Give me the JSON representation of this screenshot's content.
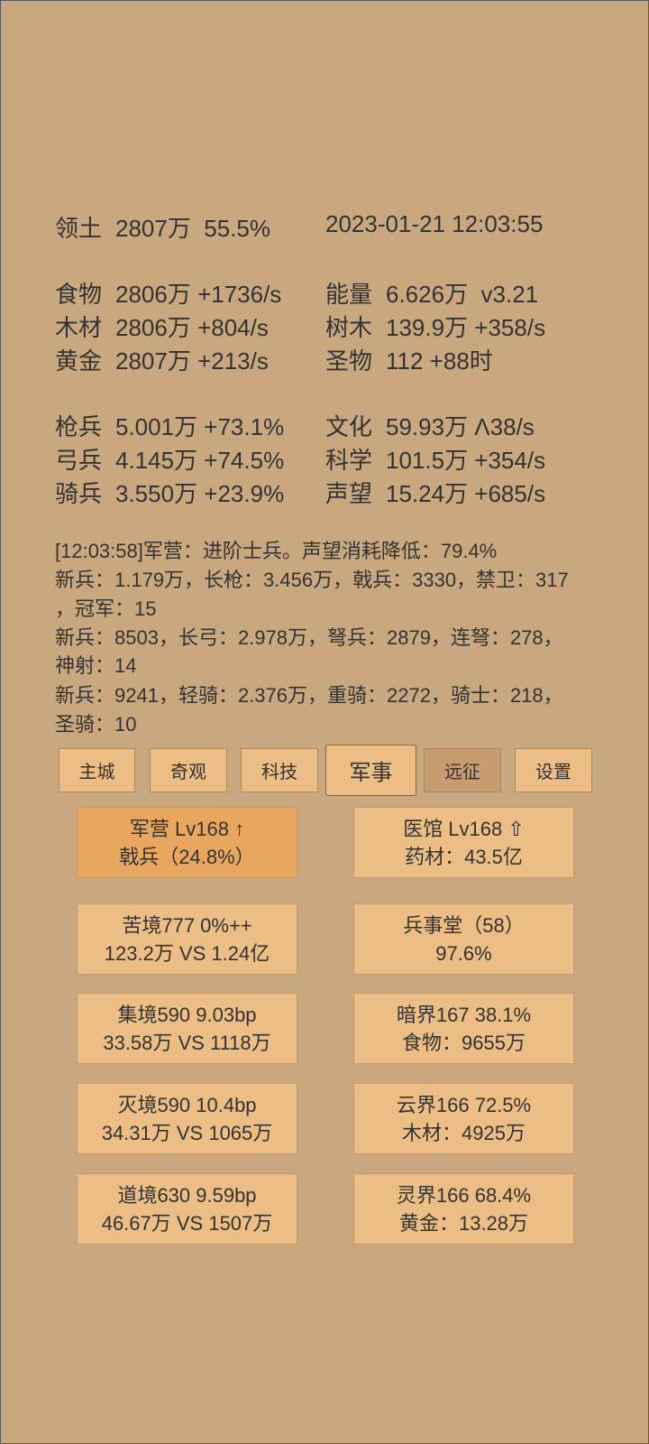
{
  "stats": [
    {
      "left": {
        "label": "领土",
        "value": "2807万  55.5%"
      },
      "right": {
        "label": "",
        "value": "2023-01-21 12:03:55"
      }
    },
    {
      "left": {
        "label": "食物",
        "value": "2806万 +1736/s"
      },
      "right": {
        "label": "能量",
        "value": "6.626万  v3.21"
      }
    },
    {
      "left": {
        "label": "木材",
        "value": "2806万 +804/s"
      },
      "right": {
        "label": "树木",
        "value": "139.9万 +358/s"
      }
    },
    {
      "left": {
        "label": "黄金",
        "value": "2807万 +213/s"
      },
      "right": {
        "label": "圣物",
        "value": "112 +88时"
      }
    },
    {
      "left": {
        "label": "枪兵",
        "value": "5.001万 +73.1%"
      },
      "right": {
        "label": "文化",
        "value": "59.93万 Λ38/s"
      }
    },
    {
      "left": {
        "label": "弓兵",
        "value": "4.145万 +74.5%"
      },
      "right": {
        "label": "科学",
        "value": "101.5万 +354/s"
      }
    },
    {
      "left": {
        "label": "骑兵",
        "value": "3.550万 +23.9%"
      },
      "right": {
        "label": "声望",
        "value": "15.24万 +685/s"
      }
    }
  ],
  "log": [
    "[12:03:58]军营：进阶士兵。声望消耗降低：79.4%",
    "新兵：1.179万，长枪：3.456万，戟兵：3330，禁卫：317",
    "，冠军：15",
    "新兵：8503，长弓：2.978万，弩兵：2879，连弩：278，",
    "神射：14",
    "新兵：9241，轻骑：2.376万，重骑：2272，骑士：218，",
    "圣骑：10"
  ],
  "tabs": [
    "主城",
    "奇观",
    "科技",
    "军事",
    "远征",
    "设置"
  ],
  "cards": [
    [
      "军营 Lv168 ↑",
      "戟兵（24.8%）"
    ],
    [
      "医馆 Lv168 ⇧",
      "药材：43.5亿"
    ],
    [
      "苦境777  0%++",
      "123.2万 VS 1.24亿"
    ],
    [
      "兵事堂（58）",
      "97.6%"
    ],
    [
      "集境590  9.03bp",
      "33.58万 VS 1118万"
    ],
    [
      "暗界167  38.1%",
      "食物：9655万"
    ],
    [
      "灭境590  10.4bp",
      "34.31万 VS 1065万"
    ],
    [
      "云界166  72.5%",
      "木材：4925万"
    ],
    [
      "道境630  9.59bp",
      "46.67万 VS 1507万"
    ],
    [
      "灵界166  68.4%",
      "黄金：13.28万"
    ]
  ]
}
